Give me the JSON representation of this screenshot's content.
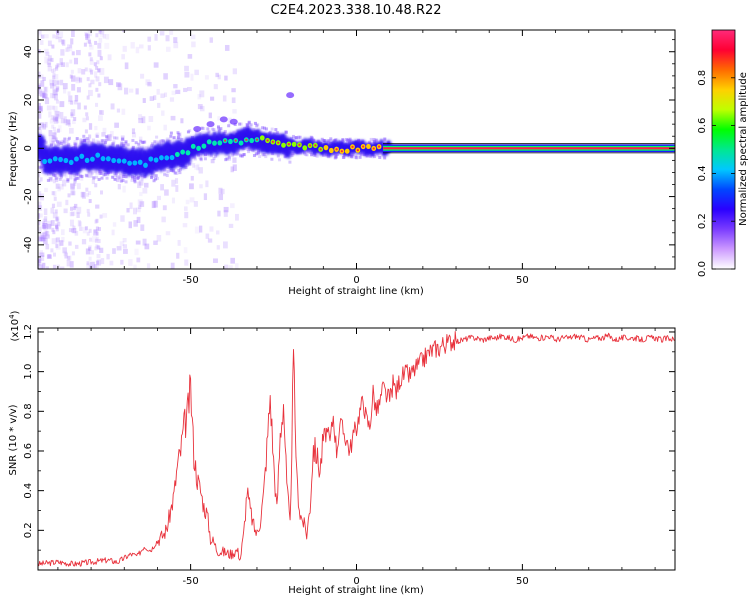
{
  "figure": {
    "title": "C2E4.2023.338.10.48.R22"
  },
  "chart_data": [
    {
      "type": "heatmap",
      "title": "C2E4.2023.338.10.48.R22",
      "xlabel": "Height of straight line (km)",
      "ylabel": "Frequency (Hz)",
      "xlim": [
        -96,
        96
      ],
      "ylim": [
        -50,
        49
      ],
      "x_ticks": [
        -50,
        0,
        50
      ],
      "y_ticks": [
        -40,
        -20,
        0,
        20,
        40
      ],
      "grid": false,
      "colorbar": {
        "label": "Normalized spectral amplitude",
        "range": [
          0,
          1
        ],
        "ticks": [
          0.0,
          0.2,
          0.4,
          0.6,
          0.8
        ],
        "colormap": [
          "#ffffff",
          "#cc99ff",
          "#7a3cff",
          "#2a00ff",
          "#0047ff",
          "#00c8ff",
          "#00e890",
          "#00ff00",
          "#bfff00",
          "#ffd000",
          "#ff6a00",
          "#ff0033",
          "#ff2a7a"
        ]
      },
      "ridge": [
        {
          "x": -94,
          "f": -5
        },
        {
          "x": -88,
          "f": -5
        },
        {
          "x": -82,
          "f": -4
        },
        {
          "x": -76,
          "f": -4
        },
        {
          "x": -70,
          "f": -5
        },
        {
          "x": -64,
          "f": -6
        },
        {
          "x": -58,
          "f": -3
        },
        {
          "x": -52,
          "f": -2
        },
        {
          "x": -48,
          "f": 1
        },
        {
          "x": -44,
          "f": 2
        },
        {
          "x": -40,
          "f": 2
        },
        {
          "x": -36,
          "f": 3
        },
        {
          "x": -32,
          "f": 4
        },
        {
          "x": -28,
          "f": 3
        },
        {
          "x": -24,
          "f": 2
        },
        {
          "x": -20,
          "f": 1
        },
        {
          "x": -15,
          "f": 1
        },
        {
          "x": -10,
          "f": 0
        },
        {
          "x": -5,
          "f": 0
        },
        {
          "x": 0,
          "f": 0
        },
        {
          "x": 8,
          "f": 0
        },
        {
          "x": 20,
          "f": 0
        },
        {
          "x": 50,
          "f": 0
        },
        {
          "x": 96,
          "f": 0
        }
      ]
    },
    {
      "type": "line",
      "xlabel": "Height of straight line (km)",
      "ylabel": "SNR (10 * v/v)",
      "y_multiplier": "(x10",
      "y_multiplier_exp": "4",
      "y_multiplier_close": ")",
      "xlim": [
        -96,
        96
      ],
      "ylim": [
        0,
        1.22
      ],
      "x_ticks": [
        -50,
        0,
        50
      ],
      "y_ticks": [
        0.2,
        0.4,
        0.6,
        0.8,
        1.0,
        1.2
      ],
      "color": "#e8323c",
      "grid": false,
      "series": [
        {
          "x": [
            -96,
            -90,
            -85,
            -80,
            -75,
            -72,
            -70,
            -68,
            -66,
            -64,
            -62,
            -60,
            -58,
            -57,
            -56,
            -55,
            -54,
            -53,
            -52,
            -51,
            -50,
            -49,
            -48,
            -47,
            -46,
            -45,
            -44,
            -43,
            -42,
            -40,
            -38,
            -36,
            -35,
            -34,
            -33,
            -32,
            -31,
            -30,
            -29,
            -28,
            -27,
            -26,
            -25,
            -24,
            -23,
            -22,
            -21,
            -20,
            -19,
            -18,
            -17,
            -16,
            -15,
            -14,
            -13,
            -12,
            -11,
            -10,
            -9,
            -8,
            -7,
            -6,
            -5,
            -4,
            -3,
            -2,
            -1,
            0,
            1,
            2,
            3,
            4,
            5,
            6,
            7,
            8,
            9,
            10,
            11,
            12,
            13,
            14,
            15,
            16,
            17,
            18,
            19,
            20,
            21,
            22,
            23,
            24,
            25,
            26,
            27,
            28,
            29,
            30,
            32,
            34,
            36,
            38,
            40,
            42,
            44,
            46,
            48,
            50,
            52,
            54,
            56,
            58,
            60,
            62,
            64,
            66,
            68,
            70,
            72,
            74,
            76,
            78,
            80,
            82,
            84,
            86,
            88,
            90,
            92,
            94,
            96
          ],
          "values": [
            0.03,
            0.04,
            0.03,
            0.04,
            0.05,
            0.04,
            0.06,
            0.08,
            0.07,
            0.12,
            0.1,
            0.15,
            0.18,
            0.22,
            0.3,
            0.38,
            0.52,
            0.6,
            0.72,
            0.78,
            0.92,
            0.58,
            0.46,
            0.4,
            0.32,
            0.28,
            0.16,
            0.14,
            0.1,
            0.09,
            0.08,
            0.1,
            0.06,
            0.18,
            0.4,
            0.3,
            0.22,
            0.18,
            0.25,
            0.38,
            0.62,
            0.88,
            0.55,
            0.3,
            0.68,
            0.85,
            0.42,
            0.22,
            1.06,
            0.46,
            0.28,
            0.24,
            0.18,
            0.32,
            0.62,
            0.58,
            0.5,
            0.66,
            0.7,
            0.64,
            0.78,
            0.6,
            0.74,
            0.7,
            0.66,
            0.6,
            0.68,
            0.72,
            0.8,
            0.86,
            0.76,
            0.72,
            0.9,
            0.8,
            0.84,
            0.92,
            0.88,
            0.86,
            0.94,
            0.9,
            0.96,
            0.98,
            0.99,
            0.98,
            1.0,
            1.02,
            1.04,
            1.06,
            1.08,
            1.1,
            1.11,
            1.12,
            1.12,
            1.14,
            1.14,
            1.15,
            1.16,
            1.15,
            1.16,
            1.17,
            1.17,
            1.16,
            1.17,
            1.17,
            1.18,
            1.17,
            1.16,
            1.17,
            1.18,
            1.17,
            1.17,
            1.18,
            1.16,
            1.17,
            1.17,
            1.18,
            1.17,
            1.16,
            1.17,
            1.17,
            1.18,
            1.16,
            1.17,
            1.17,
            1.17,
            1.16,
            1.17,
            1.17,
            1.16,
            1.17,
            1.16
          ]
        }
      ]
    }
  ]
}
